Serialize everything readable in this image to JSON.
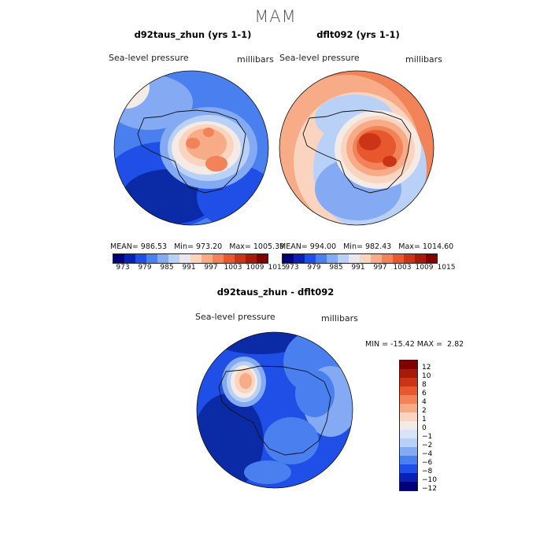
{
  "figure": {
    "season": "MAM"
  },
  "panels": [
    {
      "title": "d92taus_zhun (yrs 1-1)",
      "variable": "Sea-level pressure",
      "units": "millibars",
      "mean": "986.53",
      "min": "973.20",
      "max": "1005.39"
    },
    {
      "title": "dflt092 (yrs 1-1)",
      "variable": "Sea-level pressure",
      "units": "millibars",
      "mean": "994.00",
      "min": "982.43",
      "max": "1014.60"
    },
    {
      "title": "d92taus_zhun - dflt092",
      "variable": "Sea-level pressure",
      "units": "millibars",
      "min": "-15.42",
      "max": "2.82"
    }
  ],
  "abs_colorbar": {
    "labels": [
      "973",
      "979",
      "985",
      "991",
      "997",
      "1003",
      "1009",
      "1015"
    ],
    "colors": [
      "#00007a",
      "#0a1fb4",
      "#1f4fe6",
      "#4a7ff0",
      "#84aaf3",
      "#b9d1f7",
      "#eae6f0",
      "#fbd4bf",
      "#f7ab86",
      "#f28257",
      "#e8582f",
      "#cc3417",
      "#a61a0a",
      "#800000"
    ]
  },
  "diff_colorbar": {
    "labels": [
      "12",
      "10",
      "8",
      "6",
      "4",
      "2",
      "1",
      "0",
      "−1",
      "−2",
      "−4",
      "−6",
      "−8",
      "−10",
      "−12"
    ],
    "colors": [
      "#800000",
      "#a61a0a",
      "#cc3417",
      "#e8582f",
      "#f28257",
      "#f7ab86",
      "#fbd4bf",
      "#f5ebe6",
      "#d6e3fa",
      "#b9d1f7",
      "#84aaf3",
      "#4a7ff0",
      "#1f4fe6",
      "#0a1fb4",
      "#00007a"
    ]
  },
  "map_colors": {
    "deep_blue": "#0b2aa6",
    "blue": "#1f4fe6",
    "mid_blue": "#4a7ff0",
    "light_blue": "#84aaf3",
    "pale_blue": "#b9d1f7",
    "near_white": "#f5ebe6",
    "peach": "#fbd4bf",
    "salmon": "#f7ab86",
    "orange": "#f28257",
    "red": "#e8582f",
    "dark_red": "#cc3417"
  }
}
